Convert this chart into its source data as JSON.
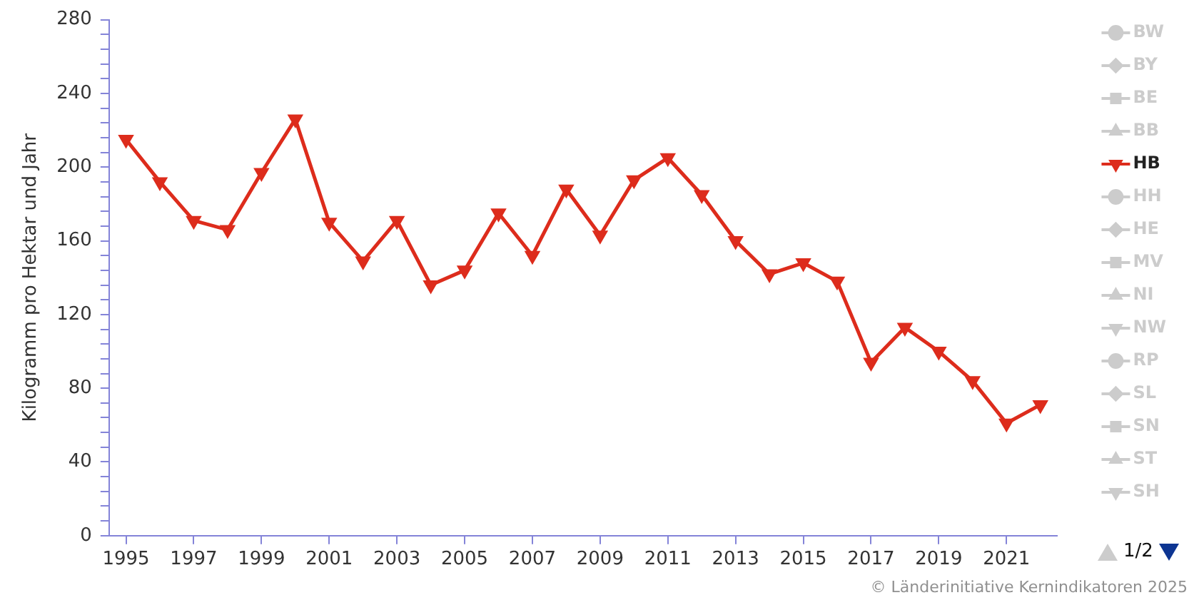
{
  "chart_data": {
    "type": "line",
    "ylabel": "Kilogramm pro Hektar und Jahr",
    "x": [
      1995,
      1996,
      1997,
      1998,
      1999,
      2000,
      2001,
      2002,
      2003,
      2004,
      2005,
      2006,
      2007,
      2008,
      2009,
      2010,
      2011,
      2012,
      2013,
      2014,
      2015,
      2016,
      2017,
      2018,
      2019,
      2020,
      2021,
      2022
    ],
    "xlim": [
      1994.5,
      2022.5
    ],
    "xticks": [
      1995,
      1997,
      1999,
      2001,
      2003,
      2005,
      2007,
      2009,
      2011,
      2013,
      2015,
      2017,
      2019,
      2021
    ],
    "ylim": [
      0,
      280
    ],
    "yticks": [
      0,
      {
        "value": 8,
        "label": null
      },
      {
        "value": 16,
        "label": null
      },
      {
        "value": 24,
        "label": null
      },
      {
        "value": 32,
        "label": null
      },
      40,
      {
        "value": 48,
        "label": null
      },
      {
        "value": 56,
        "label": null
      },
      {
        "value": 64,
        "label": null
      },
      {
        "value": 72,
        "label": null
      },
      80,
      {
        "value": 88,
        "label": null
      },
      {
        "value": 96,
        "label": null
      },
      {
        "value": 104,
        "label": null
      },
      {
        "value": 112,
        "label": null
      },
      120,
      {
        "value": 128,
        "label": null
      },
      {
        "value": 136,
        "label": null
      },
      {
        "value": 144,
        "label": null
      },
      {
        "value": 152,
        "label": null
      },
      160,
      {
        "value": 168,
        "label": null
      },
      {
        "value": 176,
        "label": null
      },
      {
        "value": 184,
        "label": null
      },
      {
        "value": 192,
        "label": null
      },
      200,
      {
        "value": 208,
        "label": null
      },
      {
        "value": 216,
        "label": null
      },
      {
        "value": 224,
        "label": null
      },
      {
        "value": 232,
        "label": null
      },
      240,
      {
        "value": 248,
        "label": null
      },
      {
        "value": 256,
        "label": null
      },
      {
        "value": 264,
        "label": null
      },
      {
        "value": 272,
        "label": null
      },
      280
    ],
    "legend": "top right",
    "line_style": "solid",
    "series": [
      {
        "name": "BW",
        "color": "#cccccc",
        "marker": "circle",
        "values": [
          null,
          null,
          null,
          null,
          null,
          null,
          null,
          null,
          null,
          null,
          null,
          null,
          null,
          null,
          null,
          null,
          null,
          null,
          null,
          null,
          null,
          null,
          null,
          null,
          null,
          null,
          null,
          null
        ]
      },
      {
        "name": "BY",
        "color": "#cccccc",
        "marker": "diamond",
        "values": [
          null,
          null,
          null,
          null,
          null,
          null,
          null,
          null,
          null,
          null,
          null,
          null,
          null,
          null,
          null,
          null,
          null,
          null,
          null,
          null,
          null,
          null,
          null,
          null,
          null,
          null,
          null,
          null
        ]
      },
      {
        "name": "BE",
        "color": "#cccccc",
        "marker": "square",
        "values": [
          null,
          null,
          null,
          null,
          null,
          null,
          null,
          null,
          null,
          null,
          null,
          null,
          null,
          null,
          null,
          null,
          null,
          null,
          null,
          null,
          null,
          null,
          null,
          null,
          null,
          null,
          null,
          null
        ]
      },
      {
        "name": "BB",
        "color": "#cccccc",
        "marker": "triangle",
        "values": [
          null,
          null,
          null,
          null,
          null,
          null,
          null,
          null,
          null,
          null,
          null,
          null,
          null,
          null,
          null,
          null,
          null,
          null,
          null,
          null,
          null,
          null,
          null,
          null,
          null,
          null,
          null,
          null
        ]
      },
      {
        "name": "HB",
        "color": "#dd2c1c",
        "marker": "triangle-down",
        "values": [
          215,
          192,
          171,
          166,
          197,
          226,
          170,
          149,
          171,
          136,
          144,
          175,
          152,
          188,
          163,
          193,
          205,
          185,
          160,
          142,
          148,
          138,
          94,
          113,
          100,
          84,
          61,
          71
        ]
      },
      {
        "name": "HH",
        "color": "#cccccc",
        "marker": "circle",
        "values": [
          null,
          null,
          null,
          null,
          null,
          null,
          null,
          null,
          null,
          null,
          null,
          null,
          null,
          null,
          null,
          null,
          null,
          null,
          null,
          null,
          null,
          null,
          null,
          null,
          null,
          null,
          null,
          null
        ]
      },
      {
        "name": "HE",
        "color": "#cccccc",
        "marker": "diamond",
        "values": [
          null,
          null,
          null,
          null,
          null,
          null,
          null,
          null,
          null,
          null,
          null,
          null,
          null,
          null,
          null,
          null,
          null,
          null,
          null,
          null,
          null,
          null,
          null,
          null,
          null,
          null,
          null,
          null
        ]
      },
      {
        "name": "MV",
        "color": "#cccccc",
        "marker": "square",
        "values": [
          null,
          null,
          null,
          null,
          null,
          null,
          null,
          null,
          null,
          null,
          null,
          null,
          null,
          null,
          null,
          null,
          null,
          null,
          null,
          null,
          null,
          null,
          null,
          null,
          null,
          null,
          null,
          null
        ]
      },
      {
        "name": "NI",
        "color": "#cccccc",
        "marker": "triangle",
        "values": [
          null,
          null,
          null,
          null,
          null,
          null,
          null,
          null,
          null,
          null,
          null,
          null,
          null,
          null,
          null,
          null,
          null,
          null,
          null,
          null,
          null,
          null,
          null,
          null,
          null,
          null,
          null,
          null
        ]
      },
      {
        "name": "NW",
        "color": "#cccccc",
        "marker": "triangle-down",
        "values": [
          null,
          null,
          null,
          null,
          null,
          null,
          null,
          null,
          null,
          null,
          null,
          null,
          null,
          null,
          null,
          null,
          null,
          null,
          null,
          null,
          null,
          null,
          null,
          null,
          null,
          null,
          null,
          null
        ]
      },
      {
        "name": "RP",
        "color": "#cccccc",
        "marker": "circle",
        "values": [
          null,
          null,
          null,
          null,
          null,
          null,
          null,
          null,
          null,
          null,
          null,
          null,
          null,
          null,
          null,
          null,
          null,
          null,
          null,
          null,
          null,
          null,
          null,
          null,
          null,
          null,
          null,
          null
        ]
      },
      {
        "name": "SL",
        "color": "#cccccc",
        "marker": "diamond",
        "values": [
          null,
          null,
          null,
          null,
          null,
          null,
          null,
          null,
          null,
          null,
          null,
          null,
          null,
          null,
          null,
          null,
          null,
          null,
          null,
          null,
          null,
          null,
          null,
          null,
          null,
          null,
          null,
          null
        ]
      },
      {
        "name": "SN",
        "color": "#cccccc",
        "marker": "square",
        "values": [
          null,
          null,
          null,
          null,
          null,
          null,
          null,
          null,
          null,
          null,
          null,
          null,
          null,
          null,
          null,
          null,
          null,
          null,
          null,
          null,
          null,
          null,
          null,
          null,
          null,
          null,
          null,
          null
        ]
      },
      {
        "name": "ST",
        "color": "#cccccc",
        "marker": "triangle",
        "values": [
          null,
          null,
          null,
          null,
          null,
          null,
          null,
          null,
          null,
          null,
          null,
          null,
          null,
          null,
          null,
          null,
          null,
          null,
          null,
          null,
          null,
          null,
          null,
          null,
          null,
          null,
          null,
          null
        ]
      },
      {
        "name": "SH",
        "color": "#cccccc",
        "marker": "triangle-down",
        "values": [
          null,
          null,
          null,
          null,
          null,
          null,
          null,
          null,
          null,
          null,
          null,
          null,
          null,
          null,
          null,
          null,
          null,
          null,
          null,
          null,
          null,
          null,
          null,
          null,
          null,
          null,
          null,
          null
        ]
      }
    ],
    "annotations": [
      "© Länderinitiative Kernindikatoren 2025",
      "1/2"
    ]
  }
}
